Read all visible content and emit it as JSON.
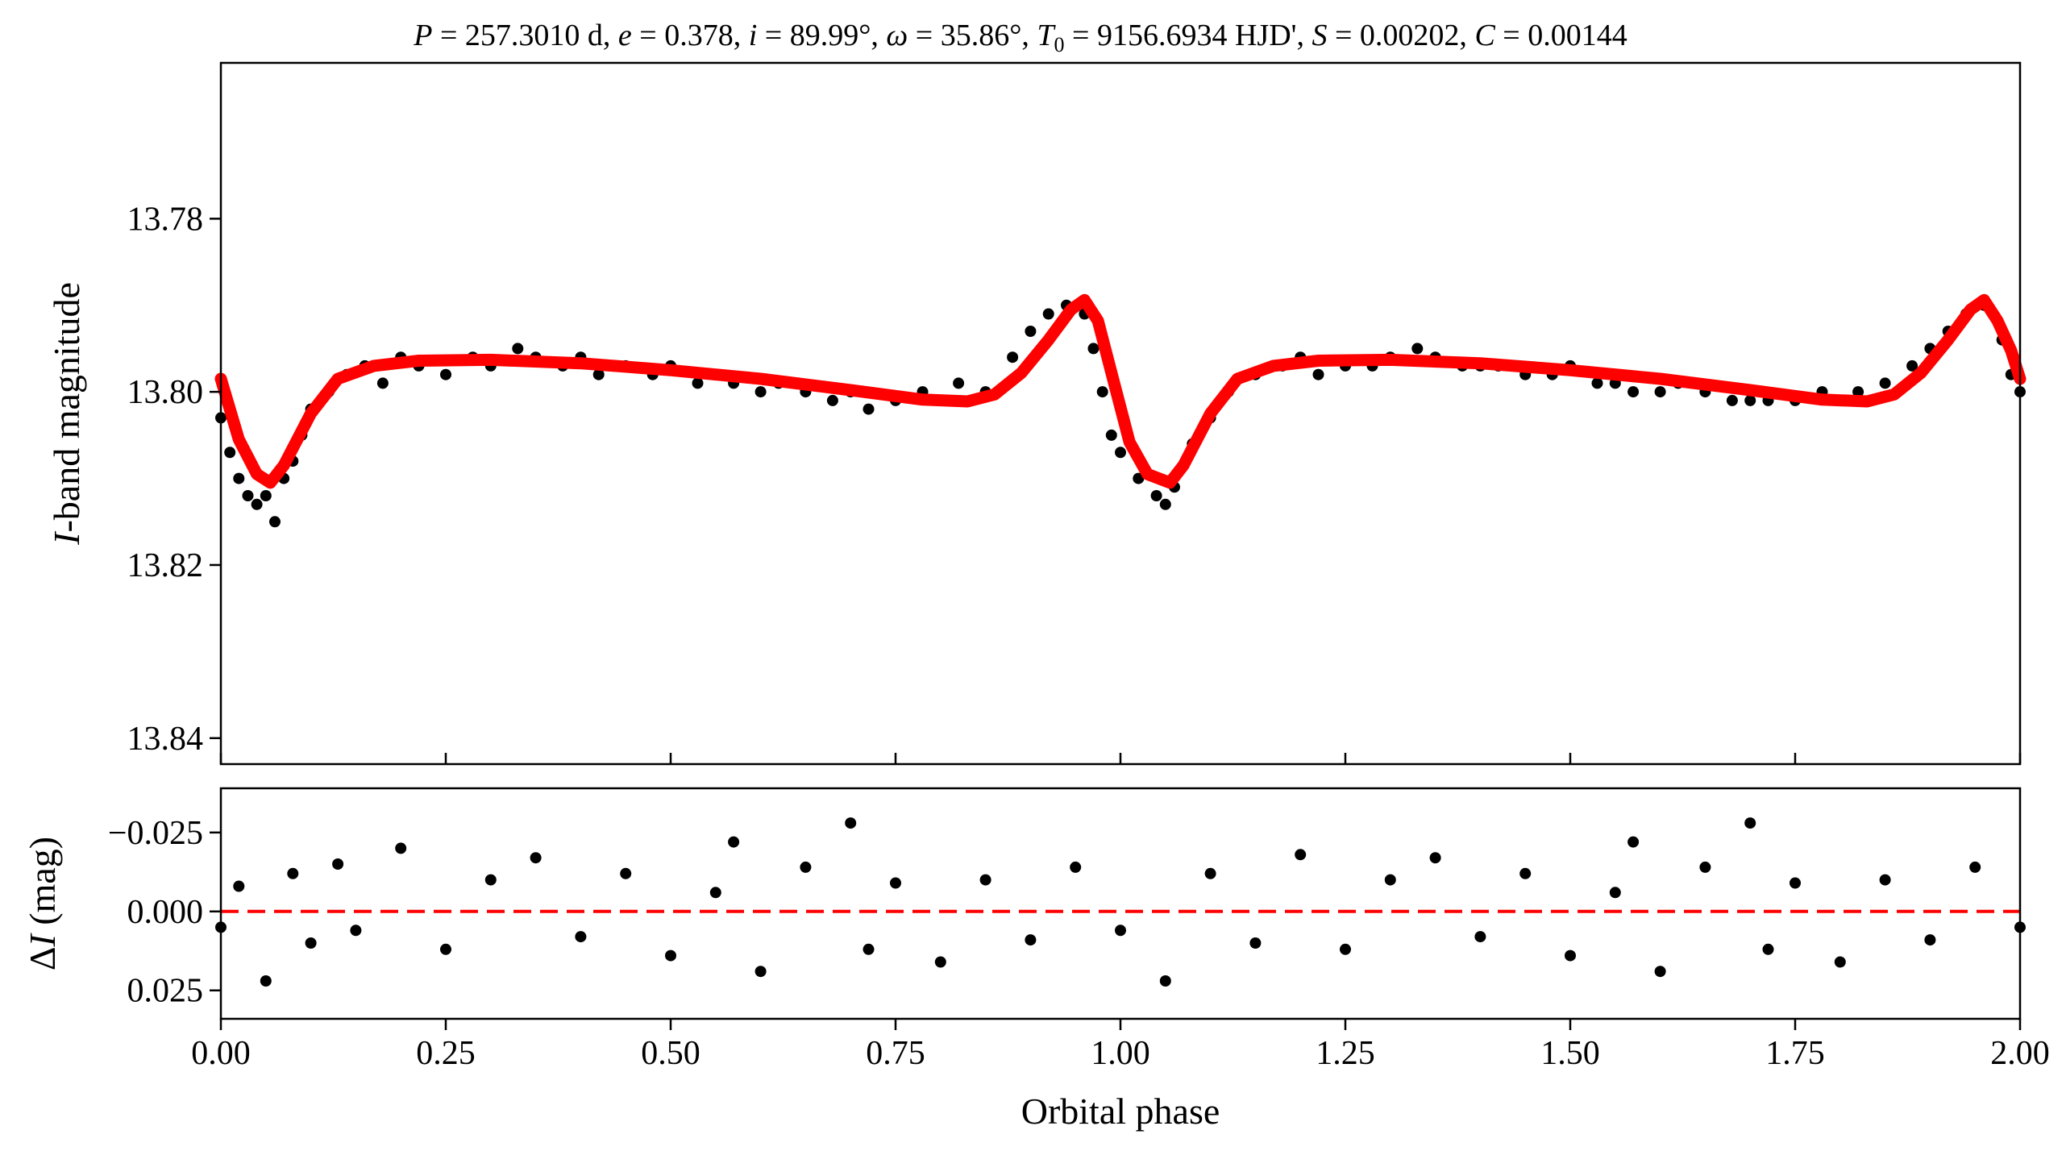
{
  "title_parts": {
    "P_sym": "P",
    "P_val": " = 257.3010 d, ",
    "e_sym": "e",
    "e_val": " = 0.378, ",
    "i_sym": "i",
    "i_val": " = 89.99°, ",
    "w_sym": "ω",
    "w_val": " = 35.86°, ",
    "T_sym": "T",
    "T_sub": "0",
    "T_val": " = 9156.6934 HJD', ",
    "S_sym": "S",
    "S_val": " = 0.00202, ",
    "C_sym": "C",
    "C_val": " = 0.00144"
  },
  "colors": {
    "data": "#000000",
    "model": "#ff0000",
    "zero_line": "#ff0000"
  },
  "chart_data": [
    {
      "id": "lightcurve",
      "type": "scatter",
      "ylabel_italic": "I",
      "ylabel_rest": "-band magnitude",
      "xlim": [
        0.0,
        2.0
      ],
      "ylim": [
        13.843,
        13.762
      ],
      "y_inverted": true,
      "yticks": [
        13.78,
        13.8,
        13.82,
        13.84
      ],
      "ytick_labels": [
        "13.78",
        "13.80",
        "13.82",
        "13.84"
      ],
      "xticks": [
        0.0,
        0.25,
        0.5,
        0.75,
        1.0,
        1.25,
        1.5,
        1.75,
        2.0
      ],
      "grid": false,
      "series": [
        {
          "kind": "points",
          "x": [
            0.0,
            0.01,
            0.02,
            0.03,
            0.04,
            0.05,
            0.06,
            0.07,
            0.08,
            0.09,
            0.1,
            0.12,
            0.14,
            0.16,
            0.18,
            0.2,
            0.22,
            0.25,
            0.28,
            0.3,
            0.33,
            0.35,
            0.38,
            0.4,
            0.42,
            0.45,
            0.48,
            0.5,
            0.53,
            0.55,
            0.57,
            0.6,
            0.62,
            0.65,
            0.68,
            0.7,
            0.72,
            0.75,
            0.78,
            0.8,
            0.82,
            0.85,
            0.88,
            0.9,
            0.92,
            0.94,
            0.96,
            0.97,
            0.98,
            0.99,
            1.0,
            1.02,
            1.04,
            1.05,
            1.06,
            1.08,
            1.1,
            1.12,
            1.15,
            1.18,
            1.2,
            1.22,
            1.25,
            1.28,
            1.3,
            1.33,
            1.35,
            1.38,
            1.4,
            1.42,
            1.45,
            1.48,
            1.5,
            1.53,
            1.55,
            1.57,
            1.6,
            1.62,
            1.65,
            1.68,
            1.7,
            1.72,
            1.75,
            1.78,
            1.8,
            1.82,
            1.85,
            1.88,
            1.9,
            1.92,
            1.94,
            1.96,
            1.97,
            1.98,
            1.99,
            2.0
          ],
          "y": [
            13.803,
            13.807,
            13.81,
            13.812,
            13.813,
            13.812,
            13.815,
            13.81,
            13.808,
            13.805,
            13.802,
            13.8,
            13.798,
            13.797,
            13.799,
            13.796,
            13.797,
            13.798,
            13.796,
            13.797,
            13.795,
            13.796,
            13.797,
            13.796,
            13.798,
            13.797,
            13.798,
            13.797,
            13.799,
            13.798,
            13.799,
            13.8,
            13.799,
            13.8,
            13.801,
            13.8,
            13.802,
            13.801,
            13.8,
            13.801,
            13.799,
            13.8,
            13.796,
            13.793,
            13.791,
            13.79,
            13.791,
            13.795,
            13.8,
            13.805,
            13.807,
            13.81,
            13.812,
            13.813,
            13.811,
            13.806,
            13.803,
            13.8,
            13.798,
            13.797,
            13.796,
            13.798,
            13.797,
            13.797,
            13.796,
            13.795,
            13.796,
            13.797,
            13.797,
            13.797,
            13.798,
            13.798,
            13.797,
            13.799,
            13.799,
            13.8,
            13.8,
            13.799,
            13.8,
            13.801,
            13.801,
            13.801,
            13.801,
            13.8,
            13.801,
            13.8,
            13.799,
            13.797,
            13.795,
            13.793,
            13.791,
            13.79,
            13.791,
            13.794,
            13.798,
            13.8
          ]
        },
        {
          "kind": "line",
          "x": [
            0.0,
            0.02,
            0.04,
            0.055,
            0.07,
            0.1,
            0.13,
            0.17,
            0.22,
            0.3,
            0.4,
            0.5,
            0.6,
            0.7,
            0.78,
            0.83,
            0.86,
            0.89,
            0.92,
            0.945,
            0.96,
            0.975,
            0.99,
            1.01,
            1.03,
            1.055,
            1.07,
            1.1,
            1.13,
            1.17,
            1.22,
            1.3,
            1.4,
            1.5,
            1.6,
            1.7,
            1.78,
            1.83,
            1.86,
            1.89,
            1.92,
            1.945,
            1.96,
            1.975,
            1.99,
            2.0
          ],
          "y": [
            13.7985,
            13.8055,
            13.8095,
            13.8105,
            13.8085,
            13.8025,
            13.7985,
            13.797,
            13.7964,
            13.7963,
            13.7967,
            13.7975,
            13.7985,
            13.7998,
            13.8009,
            13.8011,
            13.8003,
            13.7978,
            13.794,
            13.7905,
            13.7894,
            13.7918,
            13.7978,
            13.8058,
            13.8095,
            13.8105,
            13.8085,
            13.8025,
            13.7985,
            13.797,
            13.7964,
            13.7963,
            13.7967,
            13.7975,
            13.7985,
            13.7998,
            13.8009,
            13.8011,
            13.8003,
            13.7978,
            13.794,
            13.7905,
            13.7894,
            13.7918,
            13.7952,
            13.7985
          ]
        }
      ]
    },
    {
      "id": "residuals",
      "type": "scatter",
      "ylabel_delta": "Δ",
      "ylabel_italic": "I",
      "ylabel_rest": " (mag)",
      "xlabel": "Orbital phase",
      "xlim": [
        0.0,
        2.0
      ],
      "ylim": [
        0.034,
        -0.039
      ],
      "y_inverted": true,
      "yticks": [
        -0.025,
        0.0,
        0.025
      ],
      "ytick_labels": [
        "−0.025",
        "0.000",
        "0.025"
      ],
      "xticks": [
        0.0,
        0.25,
        0.5,
        0.75,
        1.0,
        1.25,
        1.5,
        1.75,
        2.0
      ],
      "xtick_labels": [
        "0.00",
        "0.25",
        "0.50",
        "0.75",
        "1.00",
        "1.25",
        "1.50",
        "1.75",
        "2.00"
      ],
      "grid": false,
      "zero_line": 0.0,
      "series": [
        {
          "kind": "points",
          "x": [
            0.0,
            0.02,
            0.05,
            0.08,
            0.1,
            0.13,
            0.15,
            0.2,
            0.25,
            0.3,
            0.35,
            0.4,
            0.45,
            0.5,
            0.55,
            0.57,
            0.6,
            0.65,
            0.7,
            0.72,
            0.75,
            0.8,
            0.85,
            0.9,
            0.95,
            1.0,
            1.05,
            1.1,
            1.15,
            1.2,
            1.25,
            1.3,
            1.35,
            1.4,
            1.45,
            1.5,
            1.55,
            1.57,
            1.6,
            1.65,
            1.7,
            1.72,
            1.75,
            1.8,
            1.85,
            1.9,
            1.95,
            2.0
          ],
          "y": [
            0.005,
            -0.008,
            0.022,
            -0.012,
            0.01,
            -0.015,
            0.006,
            -0.02,
            0.012,
            -0.01,
            -0.017,
            0.008,
            -0.012,
            0.014,
            -0.006,
            -0.022,
            0.019,
            -0.014,
            -0.028,
            0.012,
            -0.009,
            0.016,
            -0.01,
            0.009,
            -0.014,
            0.006,
            0.022,
            -0.012,
            0.01,
            -0.018,
            0.012,
            -0.01,
            -0.017,
            0.008,
            -0.012,
            0.014,
            -0.006,
            -0.022,
            0.019,
            -0.014,
            -0.028,
            0.012,
            -0.009,
            0.016,
            -0.01,
            0.009,
            -0.014,
            0.005
          ]
        }
      ]
    }
  ]
}
